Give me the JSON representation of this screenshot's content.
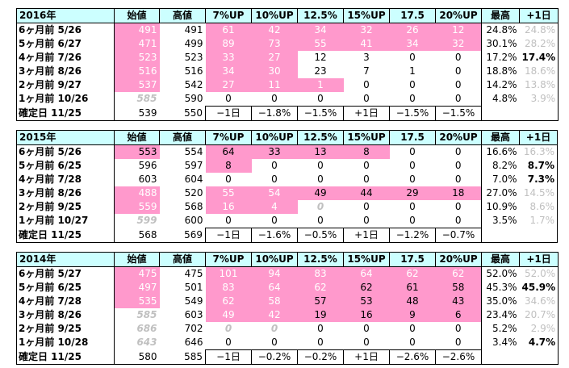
{
  "headers": [
    "始値",
    "高値",
    "7%UP",
    "10%UP",
    "12.5%",
    "15%UP",
    "17.5",
    "20%UP",
    "最高",
    "+1日"
  ],
  "blocks": [
    {
      "year": "2016年",
      "rows": [
        {
          "label": "6ヶ月前  5/26",
          "open": "491",
          "high": "491",
          "up7": "61",
          "up10": "42",
          "up125": "34",
          "up15": "32",
          "up175": "26",
          "up20": "12",
          "max": "24.8%",
          "plus1": "24.8%"
        },
        {
          "label": "5ヶ月前  6/27",
          "open": "471",
          "high": "499",
          "up7": "89",
          "up10": "73",
          "up125": "55",
          "up15": "41",
          "up175": "34",
          "up20": "32",
          "max": "30.1%",
          "plus1": "28.2%"
        },
        {
          "label": "4ヶ月前  7/26",
          "open": "523",
          "high": "523",
          "up7": "33",
          "up10": "27",
          "up125": "12",
          "up15": "3",
          "up175": "0",
          "up20": "0",
          "max": "17.2%",
          "plus1": "17.4%"
        },
        {
          "label": "3ヶ月前  8/26",
          "open": "516",
          "high": "516",
          "up7": "34",
          "up10": "30",
          "up125": "23",
          "up15": "7",
          "up175": "1",
          "up20": "0",
          "max": "18.8%",
          "plus1": "18.6%"
        },
        {
          "label": "2ヶ月前  9/27",
          "open": "537",
          "high": "542",
          "up7": "27",
          "up10": "11",
          "up125": "1",
          "up15": "0",
          "up175": "0",
          "up20": "0",
          "max": "14.2%",
          "plus1": "13.8%"
        },
        {
          "label": "1ヶ月前 10/26",
          "open": "585",
          "high": "590",
          "up7": "0",
          "up10": "0",
          "up125": "0",
          "up15": "0",
          "up175": "0",
          "up20": "0",
          "max": "4.8%",
          "plus1": "3.9%"
        },
        {
          "label": "確定日  11/25",
          "open": "539",
          "high": "550",
          "up7": "−1日",
          "up10": "−1.8%",
          "up125": "−1.5%",
          "up15": "+1日",
          "up175": "−1.5%",
          "up20": "−1.5%",
          "max": "",
          "plus1": ""
        }
      ]
    },
    {
      "year": "2015年",
      "rows": [
        {
          "label": "6ヶ月前  5/26",
          "open": "553",
          "high": "554",
          "up7": "64",
          "up10": "33",
          "up125": "13",
          "up15": "8",
          "up175": "0",
          "up20": "0",
          "max": "16.6%",
          "plus1": "16.3%"
        },
        {
          "label": "5ヶ月前  6/25",
          "open": "596",
          "high": "597",
          "up7": "8",
          "up10": "0",
          "up125": "0",
          "up15": "0",
          "up175": "0",
          "up20": "0",
          "max": "8.2%",
          "plus1": "8.7%"
        },
        {
          "label": "4ヶ月前  7/28",
          "open": "603",
          "high": "604",
          "up7": "0",
          "up10": "0",
          "up125": "0",
          "up15": "0",
          "up175": "0",
          "up20": "0",
          "max": "7.0%",
          "plus1": "7.3%"
        },
        {
          "label": "3ヶ月前  8/26",
          "open": "488",
          "high": "520",
          "up7": "55",
          "up10": "54",
          "up125": "49",
          "up15": "44",
          "up175": "29",
          "up20": "18",
          "max": "27.0%",
          "plus1": "14.5%"
        },
        {
          "label": "2ヶ月前  9/25",
          "open": "559",
          "high": "568",
          "up7": "16",
          "up10": "4",
          "up125": "0",
          "up15": "0",
          "up175": "0",
          "up20": "0",
          "max": "10.9%",
          "plus1": "8.6%"
        },
        {
          "label": "1ヶ月前 10/27",
          "open": "599",
          "high": "600",
          "up7": "0",
          "up10": "0",
          "up125": "0",
          "up15": "0",
          "up175": "0",
          "up20": "0",
          "max": "3.5%",
          "plus1": "1.7%"
        },
        {
          "label": "確定日  11/25",
          "open": "568",
          "high": "569",
          "up7": "−1日",
          "up10": "−1.6%",
          "up125": "−0.5%",
          "up15": "+1日",
          "up175": "−1.2%",
          "up20": "−0.7%",
          "max": "",
          "plus1": ""
        }
      ]
    },
    {
      "year": "2014年",
      "rows": [
        {
          "label": "6ヶ月前  5/27",
          "open": "475",
          "high": "475",
          "up7": "101",
          "up10": "94",
          "up125": "83",
          "up15": "64",
          "up175": "62",
          "up20": "62",
          "max": "52.0%",
          "plus1": "52.0%"
        },
        {
          "label": "5ヶ月前  6/25",
          "open": "497",
          "high": "501",
          "up7": "83",
          "up10": "64",
          "up125": "62",
          "up15": "62",
          "up175": "61",
          "up20": "58",
          "max": "45.3%",
          "plus1": "45.9%"
        },
        {
          "label": "4ヶ月前  7/28",
          "open": "535",
          "high": "549",
          "up7": "62",
          "up10": "58",
          "up125": "57",
          "up15": "53",
          "up175": "48",
          "up20": "43",
          "max": "35.0%",
          "plus1": "34.6%"
        },
        {
          "label": "3ヶ月前  8/26",
          "open": "585",
          "high": "603",
          "up7": "49",
          "up10": "42",
          "up125": "19",
          "up15": "16",
          "up175": "9",
          "up20": "6",
          "max": "23.4%",
          "plus1": "20.7%"
        },
        {
          "label": "2ヶ月前  9/25",
          "open": "686",
          "high": "702",
          "up7": "0",
          "up10": "0",
          "up125": "0",
          "up15": "0",
          "up175": "0",
          "up20": "0",
          "max": "5.2%",
          "plus1": "2.9%"
        },
        {
          "label": "1ヶ月前 10/28",
          "open": "643",
          "high": "646",
          "up7": "0",
          "up10": "0",
          "up125": "0",
          "up15": "0",
          "up175": "0",
          "up20": "0",
          "max": "3.4%",
          "plus1": "4.7%"
        },
        {
          "label": "確定日  11/25",
          "open": "580",
          "high": "585",
          "up7": "−1日",
          "up10": "−0.2%",
          "up125": "−0.2%",
          "up15": "+1日",
          "up175": "−2.6%",
          "up20": "−2.6%",
          "max": "",
          "plus1": ""
        }
      ]
    }
  ],
  "colors": {
    "header_bg": "#ccffff",
    "highlight": "#ff99cc",
    "gray_text": "#c0c0c0"
  }
}
